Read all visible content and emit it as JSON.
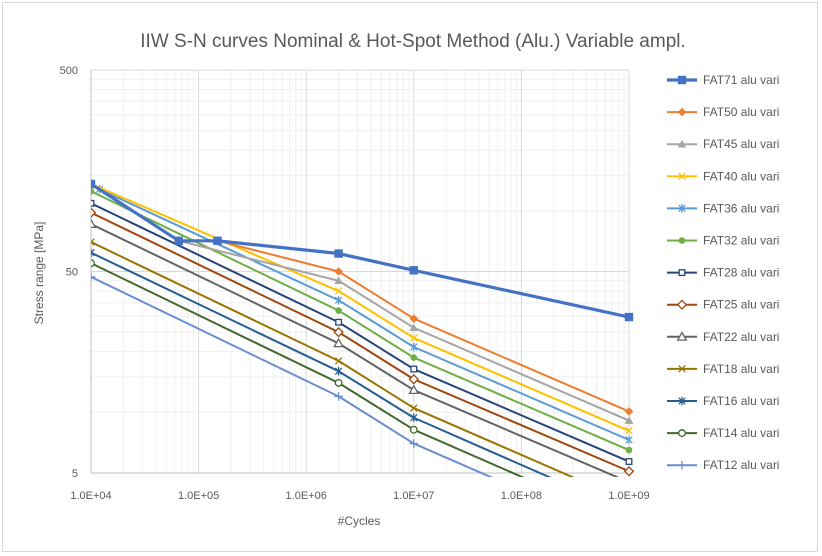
{
  "chart_data": {
    "type": "line",
    "title": "IIW S-N curves Nominal & Hot-Spot Method (Alu.) Variable ampl.",
    "xlabel": "#Cycles",
    "ylabel": "Stress range [MPa]",
    "x_scale": "log",
    "y_scale": "log",
    "xlim": [
      10000,
      1000000000
    ],
    "ylim": [
      5,
      500
    ],
    "x_ticks": [
      "1.0E+04",
      "1.0E+05",
      "1.0E+06",
      "1.0E+07",
      "1.0E+08",
      "1.0E+09"
    ],
    "y_ticks": [
      "5",
      "50",
      "500"
    ],
    "grid": true,
    "legend_position": "right",
    "series": [
      {
        "name": "FAT71 alu vari",
        "color": "#4472C4",
        "marker": "square-filled",
        "thick": true,
        "x": [
          10000,
          65400,
          150000,
          2000000,
          10000000,
          1000000000
        ],
        "y": [
          136,
          71,
          71,
          61.4,
          50.7,
          29.7
        ]
      },
      {
        "name": "FAT50 alu vari",
        "color": "#ED7D31",
        "marker": "diamond-filled",
        "x": [
          10000,
          65400,
          150000,
          2000000,
          10000000,
          1000000000
        ],
        "y": [
          136,
          71,
          71,
          50,
          29.2,
          10.1
        ]
      },
      {
        "name": "FAT45 alu vari",
        "color": "#A5A5A5",
        "marker": "triangle-filled",
        "x": [
          10000,
          65400,
          2000000,
          10000000,
          1000000000
        ],
        "y": [
          136,
          71,
          45,
          26.3,
          9.1
        ]
      },
      {
        "name": "FAT40 alu vari",
        "color": "#FFC000",
        "marker": "x",
        "x": [
          10000,
          2000000,
          10000000,
          1000000000
        ],
        "y": [
          136,
          40,
          23.4,
          8.1
        ]
      },
      {
        "name": "FAT36 alu vari",
        "color": "#5B9BD5",
        "marker": "asterisk",
        "x": [
          10000,
          12000,
          2000000,
          10000000,
          1000000000
        ],
        "y": [
          136,
          128,
          36,
          21.1,
          7.3
        ]
      },
      {
        "name": "FAT32 alu vari",
        "color": "#70AD47",
        "marker": "circle-filled",
        "x": [
          10000,
          2000000,
          10000000,
          1000000000
        ],
        "y": [
          125,
          32,
          18.7,
          6.5
        ]
      },
      {
        "name": "FAT28 alu vari",
        "color": "#264478",
        "marker": "square-open",
        "x": [
          10000,
          2000000,
          10000000,
          1000000000
        ],
        "y": [
          109,
          28,
          16.4,
          5.7
        ]
      },
      {
        "name": "FAT25 alu vari",
        "color": "#9E480E",
        "marker": "diamond-open",
        "x": [
          10000,
          2000000,
          10000000,
          1000000000
        ],
        "y": [
          98,
          25,
          14.6,
          5.1
        ]
      },
      {
        "name": "FAT22 alu vari",
        "color": "#636363",
        "marker": "triangle-open",
        "x": [
          10000,
          2000000,
          10000000,
          1000000000
        ],
        "y": [
          86,
          22,
          12.9,
          4.5
        ]
      },
      {
        "name": "FAT18 alu vari",
        "color": "#997300",
        "marker": "x",
        "x": [
          10000,
          2000000,
          10000000,
          1000000000
        ],
        "y": [
          70,
          18,
          10.5,
          3.6
        ]
      },
      {
        "name": "FAT16 alu vari",
        "color": "#255E91",
        "marker": "asterisk",
        "x": [
          10000,
          2000000,
          10000000,
          1000000000
        ],
        "y": [
          62,
          16,
          9.4,
          3.2
        ]
      },
      {
        "name": "FAT14 alu vari",
        "color": "#43682B",
        "marker": "circle-open",
        "x": [
          10000,
          2000000,
          10000000,
          1000000000
        ],
        "y": [
          55,
          14,
          8.2,
          2.8
        ]
      },
      {
        "name": "FAT12 alu vari",
        "color": "#698ED0",
        "marker": "plus",
        "x": [
          10000,
          2000000,
          10000000,
          1000000000
        ],
        "y": [
          47,
          12,
          7.0,
          2.4
        ]
      }
    ]
  }
}
